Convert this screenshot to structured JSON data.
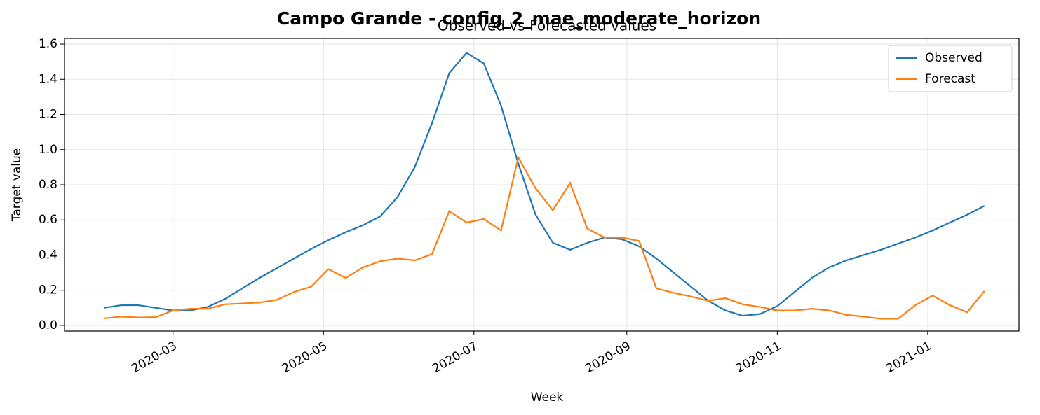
{
  "chart_data": {
    "type": "line",
    "title": "Campo Grande - config_2_mae_moderate_horizon",
    "subtitle": "Observed vs Forecasted values",
    "x_label": "Week",
    "y_label": "Target value",
    "x": [
      "2020-02-02",
      "2020-02-09",
      "2020-02-16",
      "2020-02-23",
      "2020-03-01",
      "2020-03-08",
      "2020-03-15",
      "2020-03-22",
      "2020-03-29",
      "2020-04-05",
      "2020-04-12",
      "2020-04-19",
      "2020-04-26",
      "2020-05-03",
      "2020-05-10",
      "2020-05-17",
      "2020-05-24",
      "2020-05-31",
      "2020-06-07",
      "2020-06-14",
      "2020-06-21",
      "2020-06-28",
      "2020-07-05",
      "2020-07-12",
      "2020-07-19",
      "2020-07-26",
      "2020-08-02",
      "2020-08-09",
      "2020-08-16",
      "2020-08-23",
      "2020-08-30",
      "2020-09-06",
      "2020-09-13",
      "2020-09-20",
      "2020-09-27",
      "2020-10-04",
      "2020-10-11",
      "2020-10-18",
      "2020-10-25",
      "2020-11-01",
      "2020-11-08",
      "2020-11-15",
      "2020-11-22",
      "2020-11-29",
      "2020-12-06",
      "2020-12-13",
      "2020-12-20",
      "2020-12-27",
      "2021-01-03",
      "2021-01-10",
      "2021-01-17",
      "2021-01-24"
    ],
    "series": [
      {
        "name": "Observed",
        "color": "#1f77b4",
        "values": [
          0.1,
          0.115,
          0.115,
          0.1,
          0.085,
          0.085,
          0.105,
          0.15,
          0.21,
          0.27,
          0.325,
          0.38,
          0.435,
          0.485,
          0.53,
          0.57,
          0.62,
          0.73,
          0.9,
          1.15,
          1.435,
          1.55,
          1.49,
          1.25,
          0.92,
          0.63,
          0.47,
          0.43,
          0.47,
          0.5,
          0.49,
          0.45,
          0.38,
          0.3,
          0.22,
          0.14,
          0.085,
          0.055,
          0.065,
          0.11,
          0.19,
          0.27,
          0.33,
          0.37,
          0.4,
          0.43,
          0.465,
          0.5,
          0.54,
          0.585,
          0.63,
          0.68
        ]
      },
      {
        "name": "Forecast",
        "color": "#ff7f0e",
        "values": [
          0.04,
          0.05,
          0.045,
          0.047,
          0.085,
          0.095,
          0.095,
          0.12,
          0.125,
          0.13,
          0.145,
          0.19,
          0.22,
          0.32,
          0.27,
          0.33,
          0.365,
          0.38,
          0.37,
          0.405,
          0.65,
          0.585,
          0.605,
          0.54,
          0.955,
          0.78,
          0.655,
          0.81,
          0.55,
          0.5,
          0.5,
          0.48,
          0.21,
          0.185,
          0.165,
          0.14,
          0.155,
          0.12,
          0.105,
          0.085,
          0.085,
          0.095,
          0.085,
          0.06,
          0.05,
          0.038,
          0.038,
          0.115,
          0.17,
          0.115,
          0.075,
          0.195
        ]
      }
    ],
    "xlim": [
      "2020-01-17",
      "2021-02-07"
    ],
    "xticks": [
      {
        "value": "2020-03-01",
        "label": "2020-03"
      },
      {
        "value": "2020-05-01",
        "label": "2020-05"
      },
      {
        "value": "2020-07-01",
        "label": "2020-07"
      },
      {
        "value": "2020-09-01",
        "label": "2020-09"
      },
      {
        "value": "2020-11-01",
        "label": "2020-11"
      },
      {
        "value": "2021-01-01",
        "label": "2021-01"
      }
    ],
    "ylim": [
      -0.032,
      1.632
    ],
    "yticks": [
      {
        "value": 0,
        "label": "0.0"
      },
      {
        "value": 0.2,
        "label": "0.2"
      },
      {
        "value": 0.4,
        "label": "0.4"
      },
      {
        "value": 0.6,
        "label": "0.6"
      },
      {
        "value": 0.8,
        "label": "0.8"
      },
      {
        "value": 1,
        "label": "1.0"
      },
      {
        "value": 1.2,
        "label": "1.2"
      },
      {
        "value": 1.4,
        "label": "1.4"
      },
      {
        "value": 1.6,
        "label": "1.6"
      }
    ],
    "grid": true,
    "legend": "upper right"
  }
}
